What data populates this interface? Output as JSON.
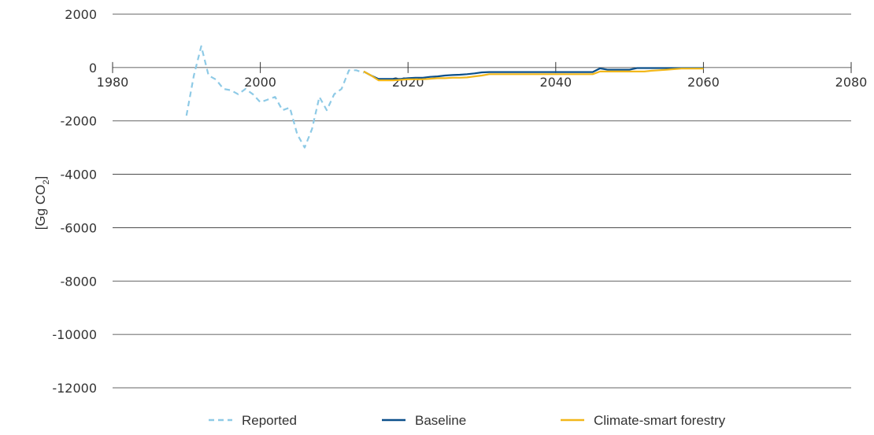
{
  "chart_data": {
    "type": "line",
    "title": "",
    "xlabel": "",
    "ylabel": "[Gg CO",
    "ylabel_subscript": "2",
    "ylabel_close": "]",
    "xlim": [
      1980,
      2080
    ],
    "ylim": [
      -12000,
      2000
    ],
    "x_ticks": [
      1980,
      2000,
      2020,
      2040,
      2060,
      2080
    ],
    "x_tick_labels": [
      "1980",
      "2000",
      "2020",
      "2040",
      "2060",
      "2080"
    ],
    "y_ticks": [
      2000,
      0,
      -2000,
      -4000,
      -6000,
      -8000,
      -10000,
      -12000
    ],
    "y_tick_labels": [
      "2000",
      "0",
      "-2000",
      "-4000",
      "-6000",
      "-8000",
      "-10000",
      "-12000"
    ],
    "grid": true,
    "legend_position": "bottom",
    "colors": {
      "reported": "#8ecae6",
      "baseline": "#0b4f8a",
      "climate_smart": "#f2b71a"
    },
    "series": [
      {
        "name": "Reported",
        "style": "dashed",
        "color": "#8ecae6",
        "points": [
          [
            1990,
            -1800
          ],
          [
            1991,
            -300
          ],
          [
            1992,
            800
          ],
          [
            1993,
            -300
          ],
          [
            1994,
            -450
          ],
          [
            1995,
            -800
          ],
          [
            1996,
            -850
          ],
          [
            1997,
            -1000
          ],
          [
            1998,
            -800
          ],
          [
            1999,
            -1000
          ],
          [
            2000,
            -1300
          ],
          [
            2001,
            -1200
          ],
          [
            2002,
            -1100
          ],
          [
            2003,
            -1600
          ],
          [
            2004,
            -1500
          ],
          [
            2005,
            -2500
          ],
          [
            2006,
            -3000
          ],
          [
            2007,
            -2300
          ],
          [
            2008,
            -1100
          ],
          [
            2009,
            -1600
          ],
          [
            2010,
            -1000
          ],
          [
            2011,
            -800
          ],
          [
            2012,
            -100
          ],
          [
            2013,
            -100
          ],
          [
            2014,
            -200
          ]
        ]
      },
      {
        "name": "Baseline",
        "style": "solid",
        "color": "#0b4f8a",
        "points": [
          [
            2014,
            -150
          ],
          [
            2015,
            -300
          ],
          [
            2016,
            -430
          ],
          [
            2017,
            -430
          ],
          [
            2018,
            -430
          ],
          [
            2019,
            -430
          ],
          [
            2020,
            -400
          ],
          [
            2021,
            -380
          ],
          [
            2022,
            -380
          ],
          [
            2023,
            -350
          ],
          [
            2024,
            -330
          ],
          [
            2025,
            -300
          ],
          [
            2026,
            -280
          ],
          [
            2027,
            -270
          ],
          [
            2028,
            -250
          ],
          [
            2029,
            -220
          ],
          [
            2030,
            -180
          ],
          [
            2031,
            -170
          ],
          [
            2032,
            -170
          ],
          [
            2033,
            -170
          ],
          [
            2034,
            -170
          ],
          [
            2035,
            -170
          ],
          [
            2036,
            -170
          ],
          [
            2037,
            -170
          ],
          [
            2038,
            -170
          ],
          [
            2039,
            -170
          ],
          [
            2040,
            -170
          ],
          [
            2041,
            -170
          ],
          [
            2042,
            -170
          ],
          [
            2043,
            -170
          ],
          [
            2044,
            -170
          ],
          [
            2045,
            -170
          ],
          [
            2046,
            -30
          ],
          [
            2047,
            -80
          ],
          [
            2048,
            -80
          ],
          [
            2049,
            -80
          ],
          [
            2050,
            -80
          ],
          [
            2051,
            -20
          ],
          [
            2052,
            -20
          ],
          [
            2053,
            -20
          ],
          [
            2054,
            -20
          ],
          [
            2055,
            -20
          ],
          [
            2056,
            -20
          ],
          [
            2057,
            -20
          ],
          [
            2058,
            -20
          ],
          [
            2059,
            -20
          ],
          [
            2060,
            -20
          ]
        ]
      },
      {
        "name": "Climate-smart forestry",
        "style": "solid",
        "color": "#f2b71a",
        "points": [
          [
            2014,
            -150
          ],
          [
            2015,
            -300
          ],
          [
            2016,
            -480
          ],
          [
            2017,
            -480
          ],
          [
            2018,
            -480
          ],
          [
            2019,
            -460
          ],
          [
            2020,
            -440
          ],
          [
            2021,
            -440
          ],
          [
            2022,
            -440
          ],
          [
            2023,
            -420
          ],
          [
            2024,
            -400
          ],
          [
            2025,
            -400
          ],
          [
            2026,
            -380
          ],
          [
            2027,
            -380
          ],
          [
            2028,
            -370
          ],
          [
            2029,
            -330
          ],
          [
            2030,
            -300
          ],
          [
            2031,
            -250
          ],
          [
            2032,
            -250
          ],
          [
            2033,
            -250
          ],
          [
            2034,
            -250
          ],
          [
            2035,
            -250
          ],
          [
            2036,
            -250
          ],
          [
            2037,
            -250
          ],
          [
            2038,
            -250
          ],
          [
            2039,
            -250
          ],
          [
            2040,
            -250
          ],
          [
            2041,
            -250
          ],
          [
            2042,
            -250
          ],
          [
            2043,
            -250
          ],
          [
            2044,
            -250
          ],
          [
            2045,
            -250
          ],
          [
            2046,
            -150
          ],
          [
            2047,
            -150
          ],
          [
            2048,
            -150
          ],
          [
            2049,
            -150
          ],
          [
            2050,
            -150
          ],
          [
            2051,
            -150
          ],
          [
            2052,
            -150
          ],
          [
            2053,
            -120
          ],
          [
            2054,
            -100
          ],
          [
            2055,
            -80
          ],
          [
            2056,
            -60
          ],
          [
            2057,
            -40
          ],
          [
            2058,
            -40
          ],
          [
            2059,
            -40
          ],
          [
            2060,
            -40
          ]
        ]
      }
    ]
  }
}
